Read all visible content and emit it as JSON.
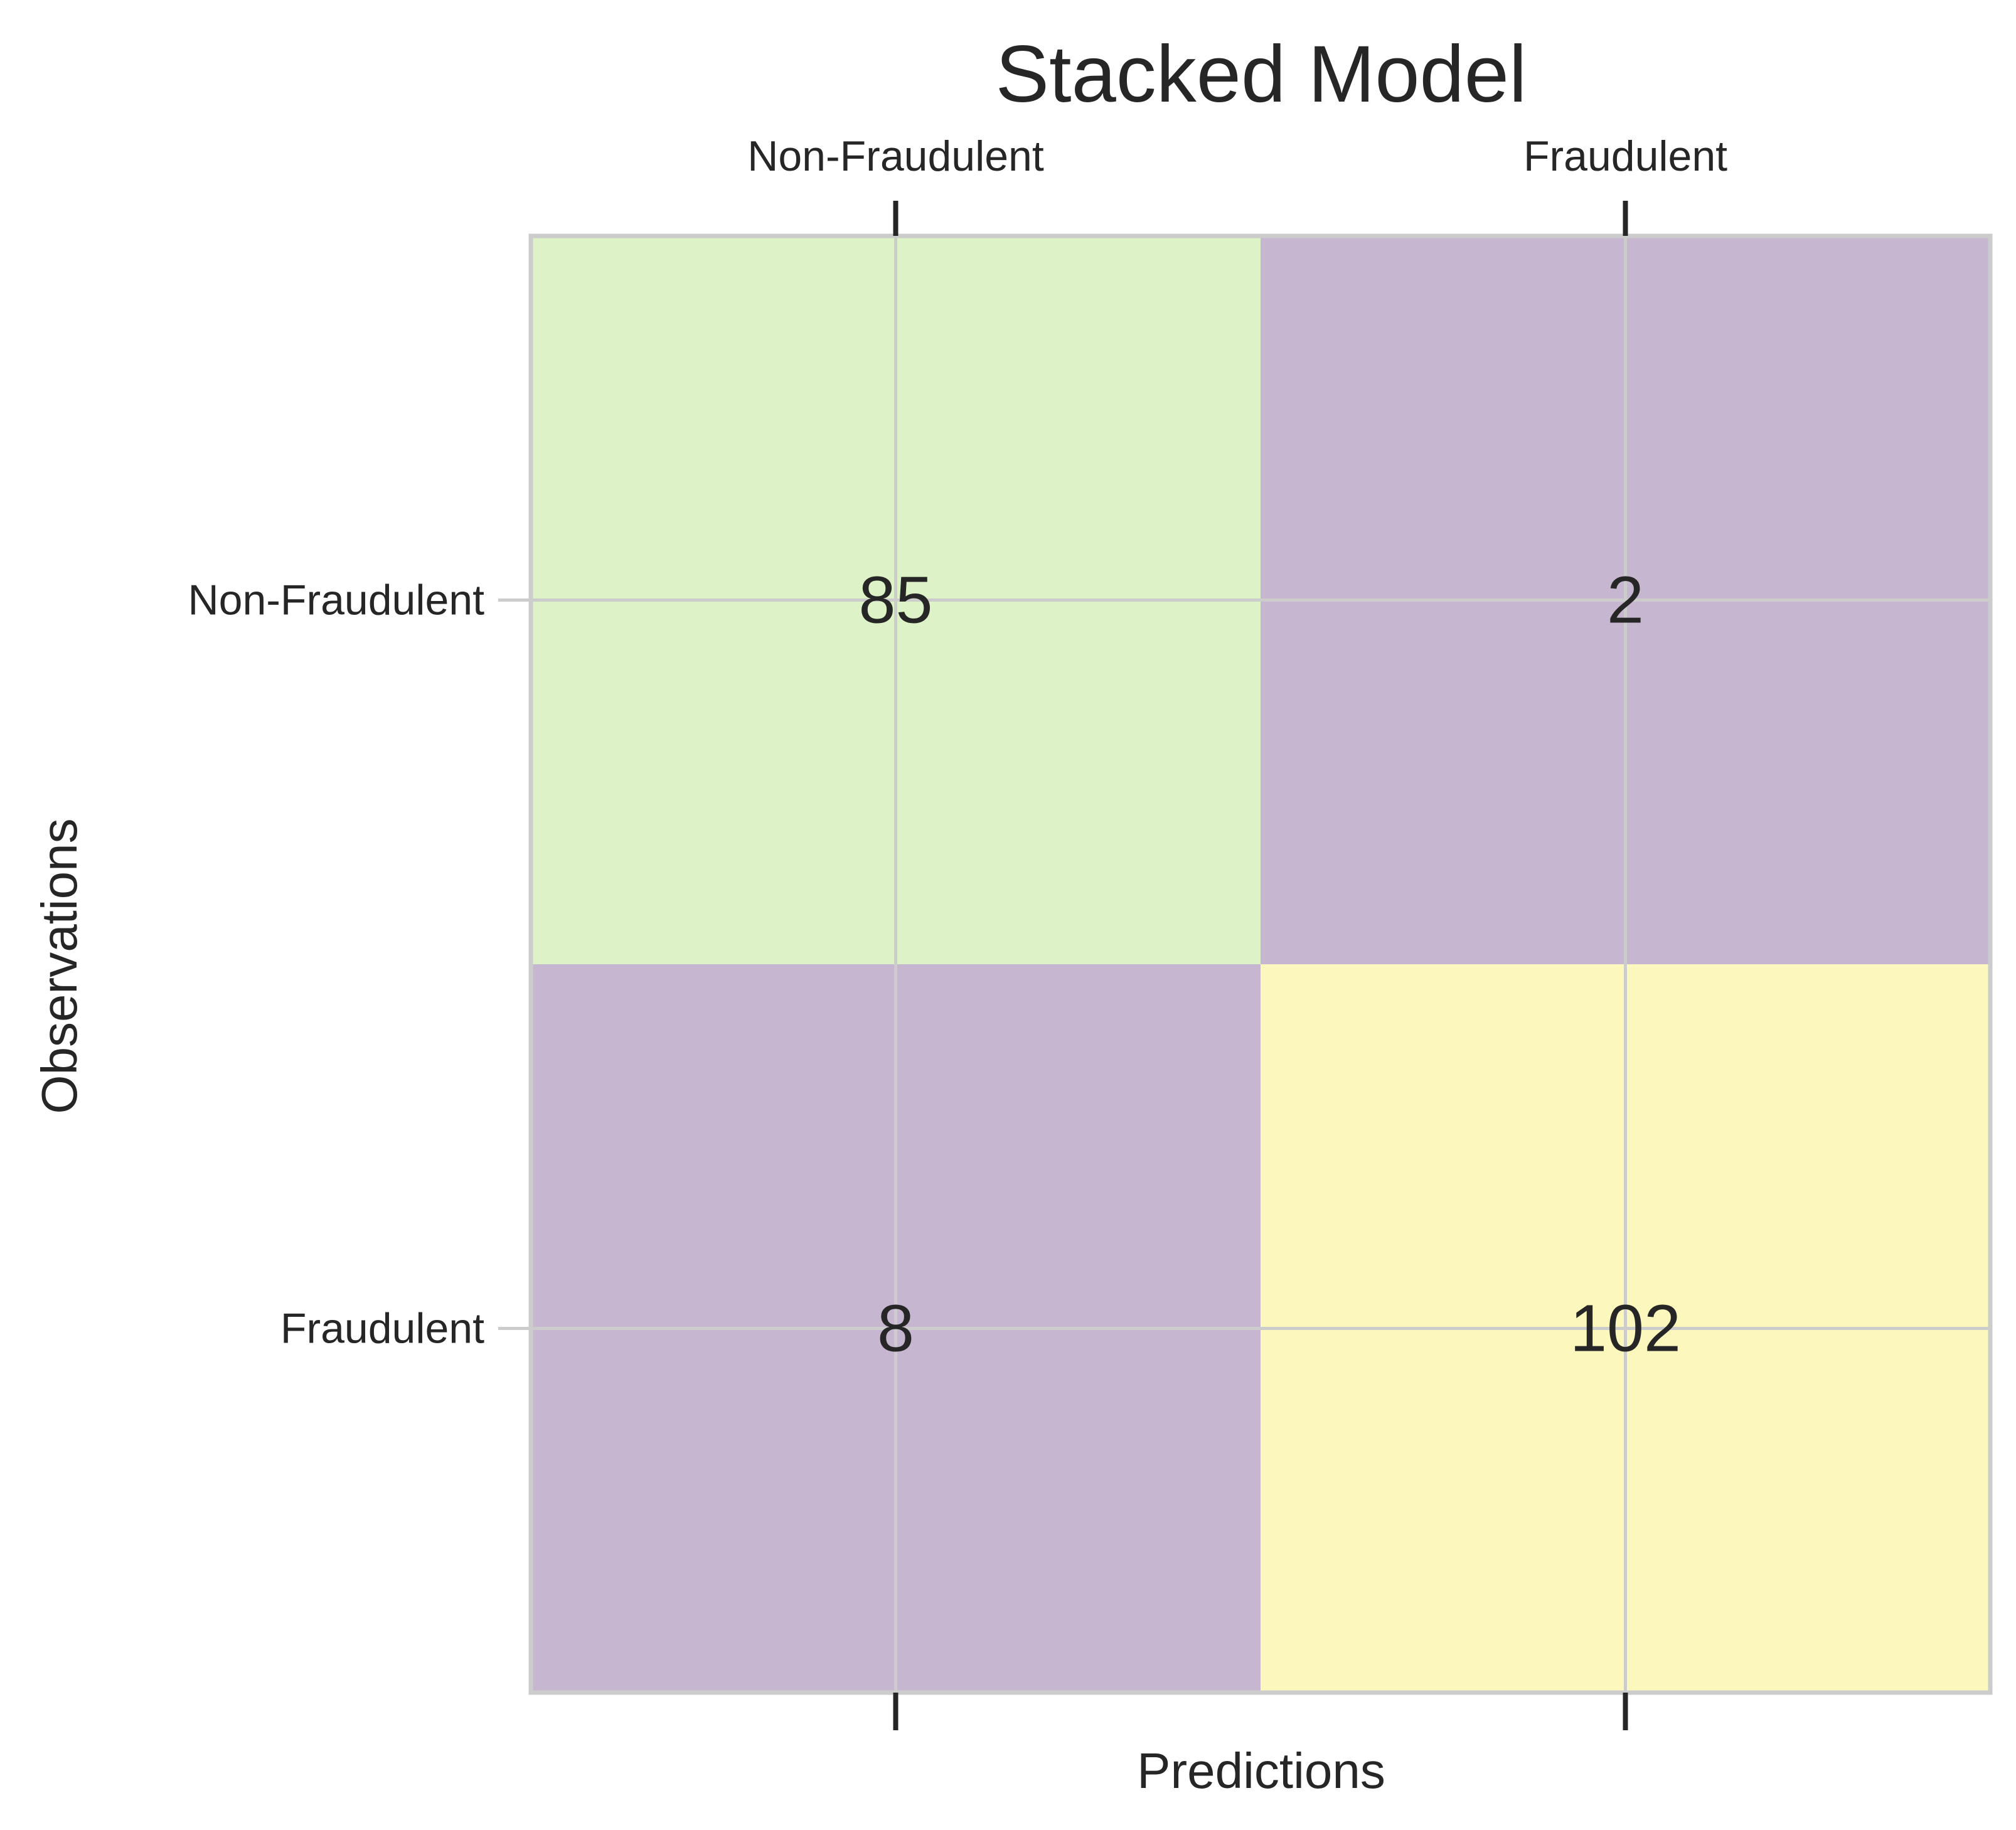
{
  "chart_data": {
    "type": "heatmap",
    "title": "Stacked Model",
    "xlabel": "Predictions",
    "ylabel": "Observations",
    "x_categories": [
      "Non-Fraudulent",
      "Fraudulent"
    ],
    "y_categories": [
      "Non-Fraudulent",
      "Fraudulent"
    ],
    "x_tick_position": "top",
    "values": [
      [
        85,
        2
      ],
      [
        8,
        102
      ]
    ],
    "cell_colors": [
      [
        "#ddf2c7",
        "#c7b6cf"
      ],
      [
        "#c7b6cf",
        "#fcf7bc"
      ]
    ],
    "grid": true,
    "grid_color": "#cccccc",
    "frame_color": "#cccccc"
  }
}
